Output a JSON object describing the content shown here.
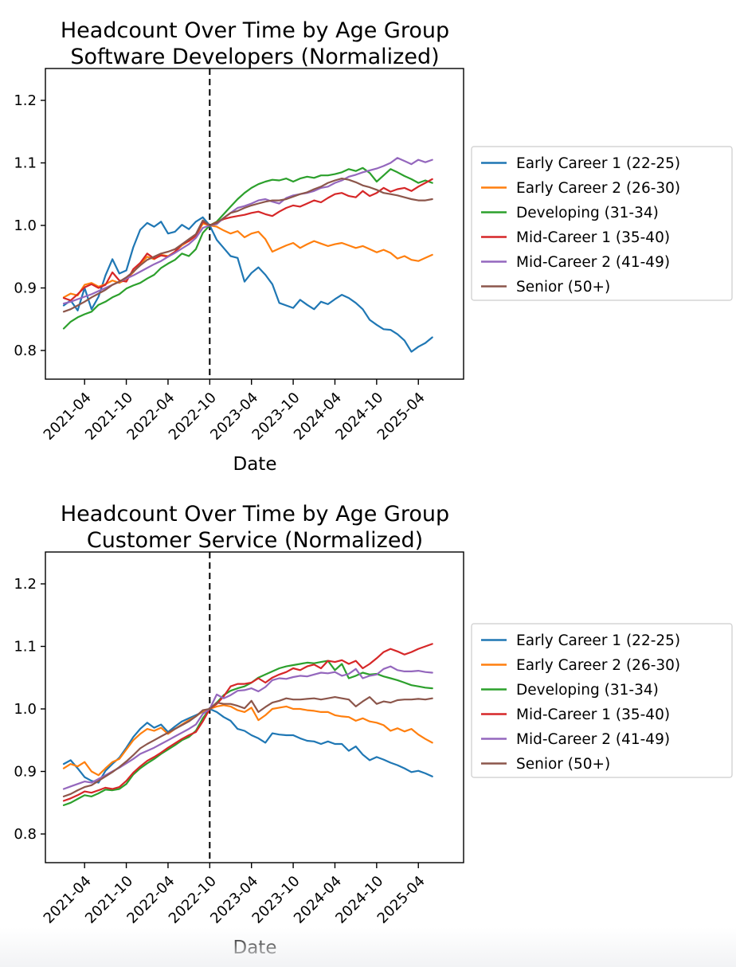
{
  "figure": {
    "background": "#ffffff"
  },
  "style_colors": {
    "axis": "#000000",
    "text": "#000000",
    "legend_border": "#cccccc",
    "event_line": "#000000"
  },
  "chart_data": [
    {
      "type": "line",
      "title": "Headcount Over Time by Age Group",
      "subtitle": "Software Developers (Normalized)",
      "xlabel": "Date",
      "ylabel": "",
      "grid": false,
      "legend_position": "right",
      "ylim": [
        0.755,
        1.25
      ],
      "y_ticks": [
        "0.8",
        "0.9",
        "1.0",
        "1.1",
        "1.2"
      ],
      "x_tick_labels": [
        "2021-04",
        "2021-10",
        "2022-04",
        "2022-10",
        "2023-04",
        "2023-10",
        "2024-04",
        "2024-10",
        "2025-04"
      ],
      "vline_at": "2022-10",
      "vline_style": "dashed",
      "x": [
        "2021-01",
        "2021-02",
        "2021-03",
        "2021-04",
        "2021-05",
        "2021-06",
        "2021-07",
        "2021-08",
        "2021-09",
        "2021-10",
        "2021-11",
        "2021-12",
        "2022-01",
        "2022-02",
        "2022-03",
        "2022-04",
        "2022-05",
        "2022-06",
        "2022-07",
        "2022-08",
        "2022-09",
        "2022-10",
        "2022-11",
        "2022-12",
        "2023-01",
        "2023-02",
        "2023-03",
        "2023-04",
        "2023-05",
        "2023-06",
        "2023-07",
        "2023-08",
        "2023-09",
        "2023-10",
        "2023-11",
        "2023-12",
        "2024-01",
        "2024-02",
        "2024-03",
        "2024-04",
        "2024-05",
        "2024-06",
        "2024-07",
        "2024-08",
        "2024-09",
        "2024-10",
        "2024-11",
        "2024-12",
        "2025-01",
        "2025-02",
        "2025-03",
        "2025-04",
        "2025-05",
        "2025-06"
      ],
      "series": [
        {
          "name": "Early Career 1 (22-25)",
          "color": "#1f77b4",
          "values": [
            0.872,
            0.88,
            0.864,
            0.9,
            0.866,
            0.886,
            0.92,
            0.946,
            0.923,
            0.928,
            0.965,
            0.993,
            1.004,
            0.998,
            1.006,
            0.987,
            0.99,
            1.001,
            0.994,
            1.006,
            1.013,
            1.0,
            0.977,
            0.964,
            0.951,
            0.948,
            0.91,
            0.924,
            0.933,
            0.921,
            0.906,
            0.876,
            0.872,
            0.868,
            0.881,
            0.873,
            0.866,
            0.878,
            0.874,
            0.882,
            0.889,
            0.884,
            0.876,
            0.866,
            0.849,
            0.841,
            0.834,
            0.833,
            0.826,
            0.816,
            0.798,
            0.806,
            0.812,
            0.821
          ]
        },
        {
          "name": "Early Career 2 (26-30)",
          "color": "#ff7f0e",
          "values": [
            0.885,
            0.891,
            0.888,
            0.905,
            0.908,
            0.902,
            0.906,
            0.912,
            0.908,
            0.914,
            0.925,
            0.938,
            0.95,
            0.946,
            0.953,
            0.951,
            0.958,
            0.968,
            0.975,
            0.983,
            1.003,
            1.0,
            0.998,
            0.992,
            0.987,
            0.991,
            0.981,
            0.987,
            0.99,
            0.978,
            0.958,
            0.963,
            0.968,
            0.972,
            0.964,
            0.97,
            0.975,
            0.971,
            0.967,
            0.97,
            0.972,
            0.968,
            0.964,
            0.967,
            0.962,
            0.957,
            0.961,
            0.956,
            0.947,
            0.951,
            0.945,
            0.943,
            0.948,
            0.953
          ]
        },
        {
          "name": "Developing (31-34)",
          "color": "#2ca02c",
          "values": [
            0.835,
            0.846,
            0.853,
            0.858,
            0.862,
            0.873,
            0.878,
            0.885,
            0.89,
            0.899,
            0.904,
            0.908,
            0.915,
            0.921,
            0.932,
            0.939,
            0.945,
            0.955,
            0.951,
            0.962,
            0.988,
            1.0,
            1.006,
            1.018,
            1.03,
            1.042,
            1.052,
            1.06,
            1.066,
            1.07,
            1.073,
            1.072,
            1.075,
            1.07,
            1.075,
            1.078,
            1.076,
            1.08,
            1.08,
            1.082,
            1.085,
            1.09,
            1.087,
            1.092,
            1.084,
            1.07,
            1.08,
            1.09,
            1.085,
            1.079,
            1.074,
            1.068,
            1.072,
            1.068
          ]
        },
        {
          "name": "Mid-Career 1 (35-40)",
          "color": "#d62728",
          "values": [
            0.884,
            0.88,
            0.89,
            0.901,
            0.906,
            0.9,
            0.905,
            0.925,
            0.912,
            0.91,
            0.93,
            0.94,
            0.955,
            0.947,
            0.952,
            0.95,
            0.958,
            0.97,
            0.975,
            0.984,
            1.006,
            1.0,
            1.005,
            1.01,
            1.013,
            1.015,
            1.017,
            1.02,
            1.022,
            1.018,
            1.015,
            1.022,
            1.028,
            1.032,
            1.03,
            1.035,
            1.04,
            1.037,
            1.044,
            1.05,
            1.052,
            1.047,
            1.045,
            1.055,
            1.047,
            1.052,
            1.06,
            1.054,
            1.058,
            1.06,
            1.055,
            1.062,
            1.068,
            1.074
          ]
        },
        {
          "name": "Mid-Career 2 (41-49)",
          "color": "#9467bd",
          "values": [
            0.875,
            0.878,
            0.882,
            0.886,
            0.89,
            0.895,
            0.9,
            0.905,
            0.91,
            0.915,
            0.92,
            0.926,
            0.932,
            0.938,
            0.943,
            0.95,
            0.956,
            0.963,
            0.97,
            0.98,
            0.996,
            1.0,
            1.002,
            1.012,
            1.02,
            1.028,
            1.031,
            1.035,
            1.04,
            1.042,
            1.038,
            1.035,
            1.044,
            1.048,
            1.05,
            1.052,
            1.055,
            1.06,
            1.062,
            1.068,
            1.072,
            1.078,
            1.081,
            1.085,
            1.088,
            1.091,
            1.095,
            1.1,
            1.108,
            1.103,
            1.098,
            1.105,
            1.101,
            1.105
          ]
        },
        {
          "name": "Senior (50+)",
          "color": "#8c564b",
          "values": [
            0.862,
            0.866,
            0.872,
            0.878,
            0.885,
            0.891,
            0.897,
            0.905,
            0.91,
            0.917,
            0.926,
            0.936,
            0.945,
            0.95,
            0.955,
            0.958,
            0.962,
            0.97,
            0.978,
            0.986,
            1.008,
            1.0,
            1.004,
            1.012,
            1.02,
            1.023,
            1.028,
            1.032,
            1.035,
            1.038,
            1.04,
            1.04,
            1.042,
            1.046,
            1.05,
            1.053,
            1.058,
            1.062,
            1.068,
            1.072,
            1.075,
            1.073,
            1.069,
            1.064,
            1.061,
            1.057,
            1.052,
            1.05,
            1.048,
            1.045,
            1.042,
            1.04,
            1.04,
            1.042
          ]
        }
      ]
    },
    {
      "type": "line",
      "title": "Headcount Over Time by Age Group",
      "subtitle": "Customer Service (Normalized)",
      "xlabel": "Date",
      "ylabel": "",
      "grid": false,
      "legend_position": "right",
      "ylim": [
        0.755,
        1.25
      ],
      "y_ticks": [
        "0.8",
        "0.9",
        "1.0",
        "1.1",
        "1.2"
      ],
      "x_tick_labels": [
        "2021-04",
        "2021-10",
        "2022-04",
        "2022-10",
        "2023-04",
        "2023-10",
        "2024-04",
        "2024-10",
        "2025-04"
      ],
      "vline_at": "2022-10",
      "vline_style": "dashed",
      "x": [
        "2021-01",
        "2021-02",
        "2021-03",
        "2021-04",
        "2021-05",
        "2021-06",
        "2021-07",
        "2021-08",
        "2021-09",
        "2021-10",
        "2021-11",
        "2021-12",
        "2022-01",
        "2022-02",
        "2022-03",
        "2022-04",
        "2022-05",
        "2022-06",
        "2022-07",
        "2022-08",
        "2022-09",
        "2022-10",
        "2022-11",
        "2022-12",
        "2023-01",
        "2023-02",
        "2023-03",
        "2023-04",
        "2023-05",
        "2023-06",
        "2023-07",
        "2023-08",
        "2023-09",
        "2023-10",
        "2023-11",
        "2023-12",
        "2024-01",
        "2024-02",
        "2024-03",
        "2024-04",
        "2024-05",
        "2024-06",
        "2024-07",
        "2024-08",
        "2024-09",
        "2024-10",
        "2024-11",
        "2024-12",
        "2025-01",
        "2025-02",
        "2025-03",
        "2025-04",
        "2025-05",
        "2025-06"
      ],
      "series": [
        {
          "name": "Early Career 1 (22-25)",
          "color": "#1f77b4",
          "values": [
            0.912,
            0.918,
            0.905,
            0.891,
            0.885,
            0.882,
            0.901,
            0.912,
            0.922,
            0.938,
            0.955,
            0.968,
            0.978,
            0.97,
            0.975,
            0.963,
            0.972,
            0.98,
            0.985,
            0.99,
            0.995,
            1.0,
            0.995,
            0.987,
            0.981,
            0.968,
            0.965,
            0.958,
            0.953,
            0.946,
            0.961,
            0.959,
            0.958,
            0.958,
            0.953,
            0.949,
            0.948,
            0.944,
            0.948,
            0.944,
            0.944,
            0.933,
            0.94,
            0.927,
            0.918,
            0.923,
            0.919,
            0.914,
            0.91,
            0.905,
            0.899,
            0.901,
            0.897,
            0.892
          ]
        },
        {
          "name": "Early Career 2 (26-30)",
          "color": "#ff7f0e",
          "values": [
            0.905,
            0.912,
            0.908,
            0.915,
            0.9,
            0.894,
            0.905,
            0.915,
            0.92,
            0.935,
            0.95,
            0.96,
            0.968,
            0.965,
            0.97,
            0.96,
            0.968,
            0.975,
            0.982,
            0.988,
            0.996,
            1.0,
            1.004,
            1.006,
            1.004,
            0.998,
            0.995,
            1.002,
            0.982,
            0.99,
            1.0,
            1.002,
            1.004,
            1.0,
            1.0,
            0.998,
            0.997,
            0.995,
            0.995,
            0.99,
            0.988,
            0.987,
            0.981,
            0.985,
            0.98,
            0.978,
            0.974,
            0.965,
            0.969,
            0.964,
            0.968,
            0.959,
            0.952,
            0.946
          ]
        },
        {
          "name": "Developing (31-34)",
          "color": "#2ca02c",
          "values": [
            0.846,
            0.85,
            0.856,
            0.862,
            0.86,
            0.865,
            0.871,
            0.87,
            0.872,
            0.88,
            0.895,
            0.905,
            0.913,
            0.92,
            0.928,
            0.935,
            0.942,
            0.95,
            0.955,
            0.965,
            0.985,
            1.0,
            1.01,
            1.022,
            1.029,
            1.033,
            1.036,
            1.042,
            1.05,
            1.055,
            1.06,
            1.065,
            1.068,
            1.07,
            1.072,
            1.074,
            1.073,
            1.075,
            1.077,
            1.062,
            1.072,
            1.049,
            1.053,
            1.058,
            1.055,
            1.056,
            1.052,
            1.049,
            1.046,
            1.042,
            1.038,
            1.036,
            1.034,
            1.033
          ]
        },
        {
          "name": "Mid-Career 1 (35-40)",
          "color": "#d62728",
          "values": [
            0.853,
            0.857,
            0.862,
            0.868,
            0.866,
            0.87,
            0.874,
            0.872,
            0.875,
            0.885,
            0.898,
            0.908,
            0.917,
            0.923,
            0.93,
            0.938,
            0.945,
            0.952,
            0.958,
            0.963,
            0.98,
            1.0,
            1.008,
            1.02,
            1.036,
            1.04,
            1.04,
            1.042,
            1.049,
            1.042,
            1.05,
            1.055,
            1.059,
            1.065,
            1.062,
            1.068,
            1.071,
            1.065,
            1.077,
            1.075,
            1.078,
            1.072,
            1.077,
            1.065,
            1.072,
            1.081,
            1.091,
            1.096,
            1.092,
            1.087,
            1.091,
            1.096,
            1.1,
            1.104
          ]
        },
        {
          "name": "Mid-Career 2 (41-49)",
          "color": "#9467bd",
          "values": [
            0.872,
            0.876,
            0.88,
            0.884,
            0.882,
            0.888,
            0.894,
            0.9,
            0.906,
            0.913,
            0.92,
            0.928,
            0.933,
            0.938,
            0.944,
            0.95,
            0.956,
            0.962,
            0.968,
            0.975,
            0.992,
            1.0,
            1.023,
            1.017,
            1.022,
            1.029,
            1.03,
            1.033,
            1.028,
            1.035,
            1.046,
            1.049,
            1.048,
            1.051,
            1.053,
            1.052,
            1.055,
            1.058,
            1.057,
            1.059,
            1.053,
            1.056,
            1.064,
            1.049,
            1.053,
            1.055,
            1.064,
            1.068,
            1.062,
            1.06,
            1.06,
            1.061,
            1.059,
            1.058
          ]
        },
        {
          "name": "Senior (50+)",
          "color": "#8c564b",
          "values": [
            0.86,
            0.864,
            0.87,
            0.875,
            0.878,
            0.885,
            0.892,
            0.899,
            0.907,
            0.916,
            0.926,
            0.937,
            0.944,
            0.95,
            0.956,
            0.962,
            0.968,
            0.974,
            0.98,
            0.988,
            0.998,
            1.0,
            1.01,
            1.008,
            1.008,
            1.005,
            1.001,
            1.013,
            0.995,
            1.003,
            1.01,
            1.013,
            1.017,
            1.015,
            1.015,
            1.016,
            1.017,
            1.015,
            1.017,
            1.019,
            1.017,
            1.015,
            1.004,
            1.012,
            1.019,
            1.008,
            1.012,
            1.01,
            1.014,
            1.015,
            1.015,
            1.016,
            1.015,
            1.017
          ]
        }
      ]
    }
  ]
}
